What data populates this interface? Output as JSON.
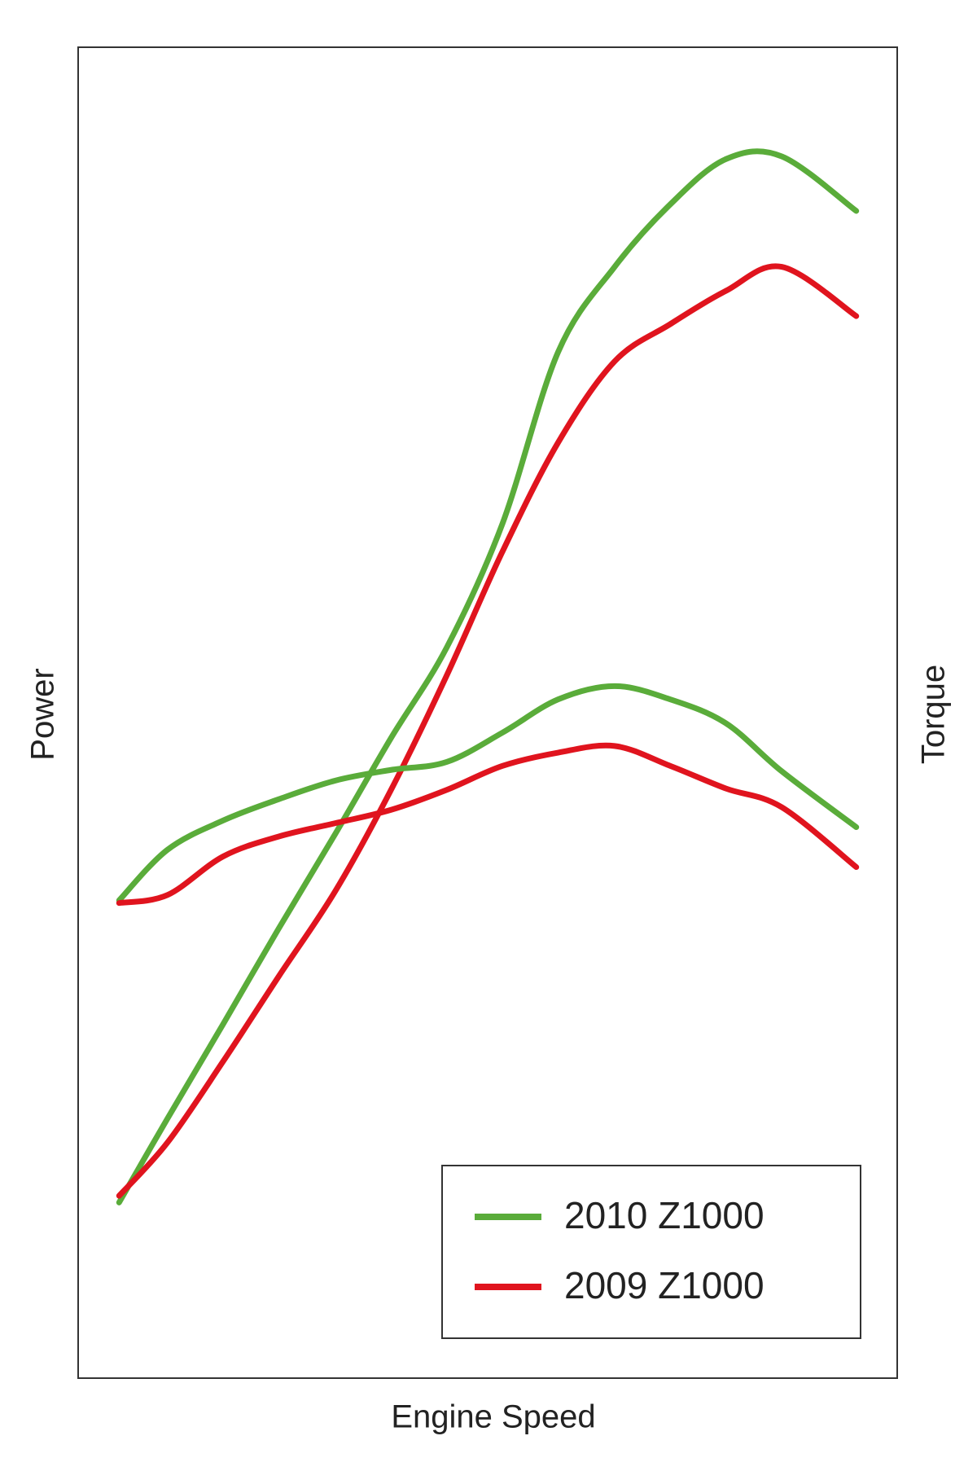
{
  "chart_data": {
    "type": "line",
    "x_label": "Engine Speed",
    "y_label": "Power",
    "y2_label": "Torque",
    "x": [
      5,
      10.9,
      17.7,
      24.5,
      31.4,
      38.2,
      45,
      51.8,
      58.6,
      65.5,
      72.3,
      79.1,
      85.9,
      95
    ],
    "xlim": [
      0,
      100
    ],
    "ylim": [
      0,
      100
    ],
    "y2lim": [
      0,
      100
    ],
    "legend": "lower right",
    "series": [
      {
        "name": "2010 Z1000",
        "color": "#5aac3a",
        "values": [
          13.2,
          19.5,
          26.6,
          33.8,
          40.9,
          48.1,
          54.9,
          64.2,
          77.1,
          83.5,
          88.2,
          91.6,
          91.8,
          87.7
        ]
      },
      {
        "name": "2009 Z1000",
        "color": "#e0141e",
        "values": [
          13.7,
          17.7,
          23.8,
          30.2,
          36.6,
          44.2,
          52.8,
          62.1,
          70.3,
          76.4,
          79.2,
          81.7,
          83.5,
          79.8
        ]
      },
      {
        "axis": "y2",
        "color": "#5aac3a",
        "values": [
          35.9,
          39.7,
          41.9,
          43.5,
          44.9,
          45.7,
          46.3,
          48.5,
          51.0,
          52.0,
          51.0,
          49.2,
          45.6,
          41.4
        ]
      },
      {
        "axis": "y2",
        "color": "#e0141e",
        "values": [
          35.7,
          36.3,
          39.2,
          40.7,
          41.7,
          42.7,
          44.2,
          46.0,
          47.0,
          47.5,
          46.0,
          44.3,
          42.9,
          38.4
        ]
      }
    ]
  }
}
